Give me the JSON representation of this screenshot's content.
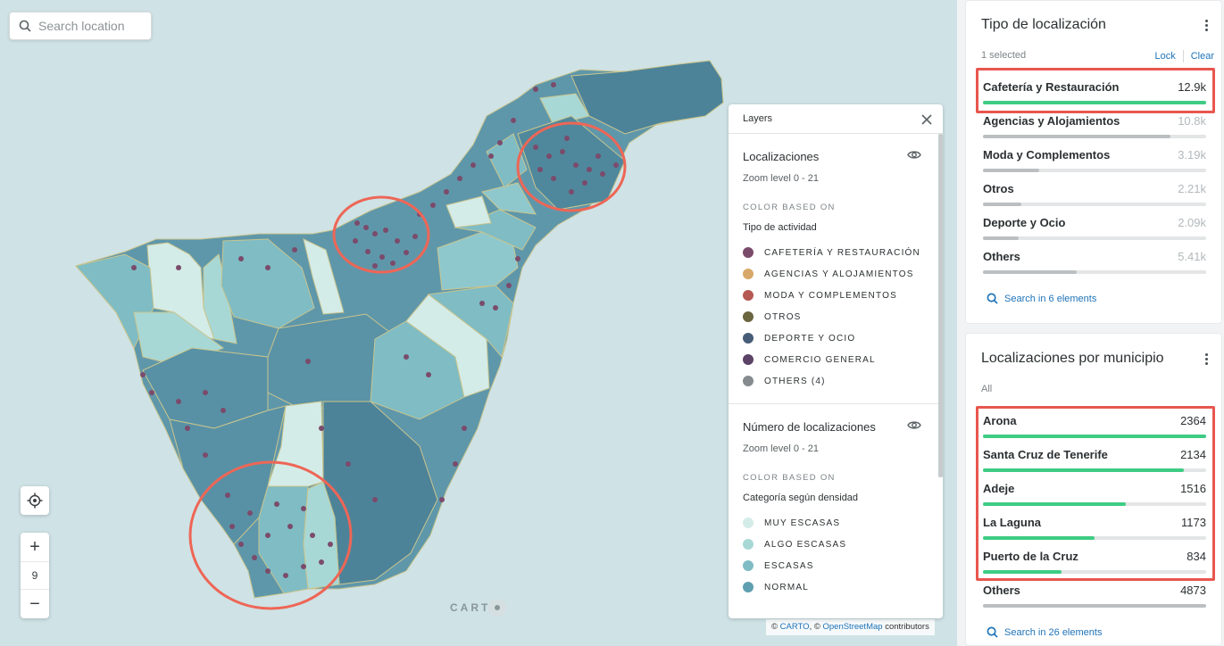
{
  "search": {
    "placeholder": "Search location"
  },
  "zoom": {
    "plus": "+",
    "level": "9",
    "minus": "−"
  },
  "carto_logo": "CART",
  "attribution": {
    "prefix": "©",
    "carto": "CARTO",
    "mid": ", ©",
    "osm": "OpenStreetMap",
    "suffix": "contributors"
  },
  "layers_panel": {
    "title": "Layers",
    "layers": [
      {
        "name": "Localizaciones",
        "zoom": "Zoom level 0 - 21",
        "color_based_label": "COLOR BASED ON",
        "based_on": "Tipo de actividad",
        "legend": [
          {
            "label": "CAFETERÍA Y RESTAURACIÓN",
            "color": "#7b4b6b"
          },
          {
            "label": "AGENCIAS Y ALOJAMIENTOS",
            "color": "#d8a869"
          },
          {
            "label": "MODA Y COMPLEMENTOS",
            "color": "#b55a53"
          },
          {
            "label": "OTROS",
            "color": "#6b6540"
          },
          {
            "label": "DEPORTE Y OCIO",
            "color": "#475d77"
          },
          {
            "label": "COMERCIO GENERAL",
            "color": "#5a4366"
          },
          {
            "label": "OTHERS (4)",
            "color": "#858b8e"
          }
        ]
      },
      {
        "name": "Número de localizaciones",
        "zoom": "Zoom level 0 - 21",
        "color_based_label": "COLOR BASED ON",
        "based_on": "Categoría según densidad",
        "legend": [
          {
            "label": "MUY ESCASAS",
            "color": "#d4ece8"
          },
          {
            "label": "ALGO ESCASAS",
            "color": "#a8d8d5"
          },
          {
            "label": "ESCASAS",
            "color": "#7fbcc4"
          },
          {
            "label": "NORMAL",
            "color": "#5f9fb0"
          }
        ]
      }
    ]
  },
  "widget_tipo": {
    "title": "Tipo de localización",
    "status": "1 selected",
    "lock": "Lock",
    "clear": "Clear",
    "rows": [
      {
        "label": "Cafetería y Restauración",
        "value": "12.9k",
        "fraction": 1.0,
        "selected": true
      },
      {
        "label": "Agencias y Alojamientos",
        "value": "10.8k",
        "fraction": 0.84,
        "selected": false
      },
      {
        "label": "Moda y Complementos",
        "value": "3.19k",
        "fraction": 0.25,
        "selected": false
      },
      {
        "label": "Otros",
        "value": "2.21k",
        "fraction": 0.17,
        "selected": false
      },
      {
        "label": "Deporte y Ocio",
        "value": "2.09k",
        "fraction": 0.16,
        "selected": false
      },
      {
        "label": "Others",
        "value": "5.41k",
        "fraction": 0.42,
        "selected": false
      }
    ],
    "search_link": "Search in 6 elements"
  },
  "widget_municipio": {
    "title": "Localizaciones por municipio",
    "status": "All",
    "rows": [
      {
        "label": "Arona",
        "value": "2364",
        "fraction": 1.0
      },
      {
        "label": "Santa Cruz de Tenerife",
        "value": "2134",
        "fraction": 0.9
      },
      {
        "label": "Adeje",
        "value": "1516",
        "fraction": 0.64
      },
      {
        "label": "La Laguna",
        "value": "1173",
        "fraction": 0.5
      },
      {
        "label": "Puerto de la Cruz",
        "value": "834",
        "fraction": 0.35
      },
      {
        "label": "Others",
        "value": "4873",
        "fraction": 1.0
      }
    ],
    "search_link": "Search in 26 elements"
  }
}
